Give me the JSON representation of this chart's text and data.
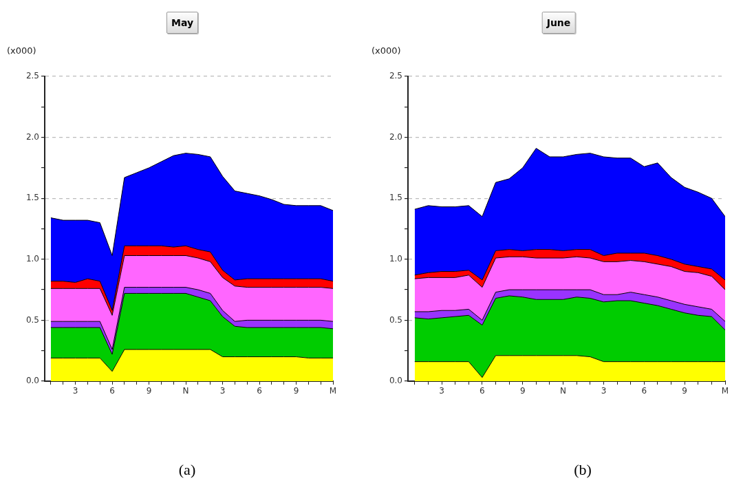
{
  "chart_data": [
    {
      "type": "area",
      "title": "May",
      "ylabel": "(x000)",
      "stacked": true,
      "grid": "y",
      "categories": [
        null,
        null,
        "3",
        null,
        null,
        "6",
        null,
        null,
        "9",
        null,
        null,
        "N",
        null,
        null,
        "3",
        null,
        null,
        "6",
        null,
        null,
        "9",
        null,
        null,
        "M"
      ],
      "ylim": [
        0,
        2.5
      ],
      "yticks": [
        {
          "value": 0,
          "label": "0.0"
        },
        {
          "value": 0.25,
          "label": null
        },
        {
          "value": 0.5,
          "label": "0.5"
        },
        {
          "value": 0.75,
          "label": null
        },
        {
          "value": 1,
          "label": "1.0"
        },
        {
          "value": 1.25,
          "label": null
        },
        {
          "value": 1.5,
          "label": "1.5"
        },
        {
          "value": 1.75,
          "label": null
        },
        {
          "value": 2,
          "label": "2.0"
        },
        {
          "value": 2.25,
          "label": null
        },
        {
          "value": 2.5,
          "label": "2.5"
        }
      ],
      "series": [
        {
          "color": "#ffff00",
          "values": [
            0.19,
            0.19,
            0.19,
            0.19,
            0.19,
            0.08,
            0.26,
            0.26,
            0.26,
            0.26,
            0.26,
            0.26,
            0.26,
            0.26,
            0.2,
            0.2,
            0.2,
            0.2,
            0.2,
            0.2,
            0.2,
            0.19,
            0.19,
            0.19
          ]
        },
        {
          "color": "#00cc00",
          "values": [
            0.25,
            0.25,
            0.25,
            0.25,
            0.25,
            0.14,
            0.46,
            0.46,
            0.46,
            0.46,
            0.46,
            0.46,
            0.43,
            0.4,
            0.33,
            0.25,
            0.24,
            0.24,
            0.24,
            0.24,
            0.24,
            0.25,
            0.25,
            0.24
          ]
        },
        {
          "color": "#9933ff",
          "values": [
            0.05,
            0.05,
            0.05,
            0.05,
            0.05,
            0.04,
            0.05,
            0.05,
            0.05,
            0.05,
            0.05,
            0.05,
            0.06,
            0.06,
            0.05,
            0.04,
            0.06,
            0.06,
            0.06,
            0.06,
            0.06,
            0.06,
            0.06,
            0.06
          ]
        },
        {
          "color": "#ff66ff",
          "values": [
            0.27,
            0.27,
            0.27,
            0.27,
            0.27,
            0.28,
            0.26,
            0.26,
            0.26,
            0.26,
            0.26,
            0.26,
            0.26,
            0.26,
            0.27,
            0.29,
            0.27,
            0.27,
            0.27,
            0.27,
            0.27,
            0.27,
            0.27,
            0.27
          ]
        },
        {
          "color": "#ff0000",
          "values": [
            0.06,
            0.06,
            0.05,
            0.08,
            0.06,
            0.04,
            0.08,
            0.08,
            0.08,
            0.08,
            0.07,
            0.08,
            0.07,
            0.08,
            0.06,
            0.05,
            0.07,
            0.07,
            0.07,
            0.07,
            0.07,
            0.07,
            0.07,
            0.06
          ]
        },
        {
          "color": "#0000ff",
          "values": [
            0.52,
            0.5,
            0.51,
            0.48,
            0.48,
            0.45,
            0.56,
            0.6,
            0.64,
            0.69,
            0.75,
            0.76,
            0.78,
            0.78,
            0.77,
            0.73,
            0.7,
            0.68,
            0.65,
            0.61,
            0.6,
            0.6,
            0.6,
            0.58
          ]
        }
      ],
      "annotations": [
        "(a)"
      ]
    },
    {
      "type": "area",
      "title": "June",
      "ylabel": "(x000)",
      "stacked": true,
      "grid": "y",
      "categories": [
        null,
        null,
        "3",
        null,
        null,
        "6",
        null,
        null,
        "9",
        null,
        null,
        "N",
        null,
        null,
        "3",
        null,
        null,
        "6",
        null,
        null,
        "9",
        null,
        null,
        "M"
      ],
      "ylim": [
        0,
        2.5
      ],
      "yticks": [
        {
          "value": 0,
          "label": "0.0"
        },
        {
          "value": 0.25,
          "label": null
        },
        {
          "value": 0.5,
          "label": "0.5"
        },
        {
          "value": 0.75,
          "label": null
        },
        {
          "value": 1,
          "label": "1.0"
        },
        {
          "value": 1.25,
          "label": null
        },
        {
          "value": 1.5,
          "label": "1.5"
        },
        {
          "value": 1.75,
          "label": null
        },
        {
          "value": 2,
          "label": "2.0"
        },
        {
          "value": 2.25,
          "label": null
        },
        {
          "value": 2.5,
          "label": "2.5"
        }
      ],
      "series": [
        {
          "color": "#ffff00",
          "values": [
            0.16,
            0.16,
            0.16,
            0.16,
            0.16,
            0.03,
            0.21,
            0.21,
            0.21,
            0.21,
            0.21,
            0.21,
            0.21,
            0.2,
            0.16,
            0.16,
            0.16,
            0.16,
            0.16,
            0.16,
            0.16,
            0.16,
            0.16,
            0.16
          ]
        },
        {
          "color": "#00cc00",
          "values": [
            0.36,
            0.35,
            0.36,
            0.37,
            0.38,
            0.43,
            0.47,
            0.49,
            0.48,
            0.46,
            0.46,
            0.46,
            0.48,
            0.48,
            0.49,
            0.5,
            0.5,
            0.48,
            0.46,
            0.43,
            0.4,
            0.38,
            0.37,
            0.26
          ]
        },
        {
          "color": "#9933ff",
          "values": [
            0.05,
            0.06,
            0.06,
            0.05,
            0.05,
            0.04,
            0.05,
            0.05,
            0.06,
            0.08,
            0.08,
            0.08,
            0.06,
            0.07,
            0.06,
            0.05,
            0.07,
            0.07,
            0.07,
            0.07,
            0.07,
            0.07,
            0.06,
            0.07
          ]
        },
        {
          "color": "#ff66ff",
          "values": [
            0.27,
            0.28,
            0.27,
            0.27,
            0.28,
            0.27,
            0.28,
            0.27,
            0.27,
            0.26,
            0.26,
            0.26,
            0.27,
            0.26,
            0.27,
            0.27,
            0.26,
            0.27,
            0.27,
            0.28,
            0.27,
            0.28,
            0.27,
            0.26
          ]
        },
        {
          "color": "#ff0000",
          "values": [
            0.03,
            0.04,
            0.05,
            0.05,
            0.04,
            0.06,
            0.06,
            0.06,
            0.05,
            0.07,
            0.07,
            0.06,
            0.06,
            0.07,
            0.05,
            0.07,
            0.06,
            0.07,
            0.07,
            0.06,
            0.06,
            0.05,
            0.06,
            0.08
          ]
        },
        {
          "color": "#0000ff",
          "values": [
            0.54,
            0.55,
            0.53,
            0.53,
            0.53,
            0.52,
            0.56,
            0.58,
            0.68,
            0.83,
            0.76,
            0.77,
            0.78,
            0.79,
            0.81,
            0.78,
            0.78,
            0.71,
            0.76,
            0.67,
            0.63,
            0.61,
            0.58,
            0.52
          ]
        }
      ],
      "annotations": [
        "(b)"
      ]
    }
  ]
}
